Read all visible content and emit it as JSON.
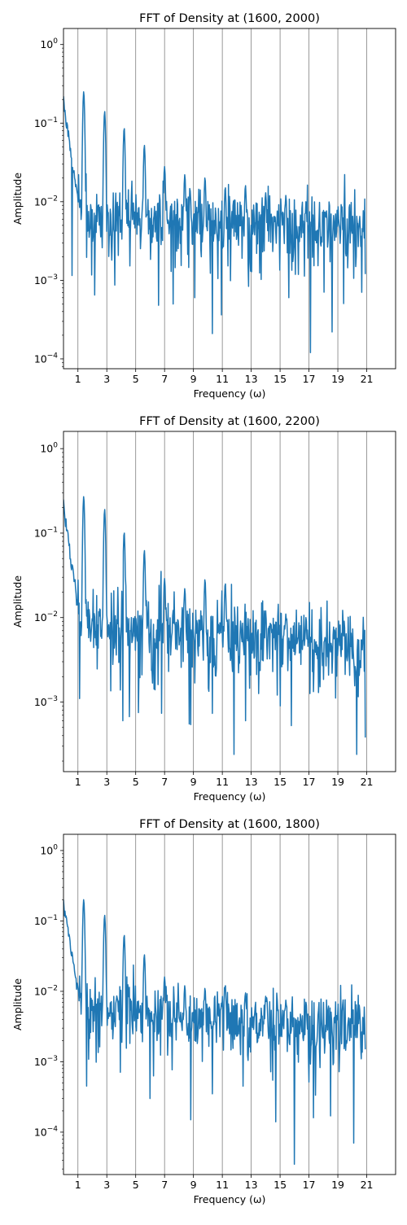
{
  "figure": {
    "x_ticks": [
      "1",
      "3",
      "5",
      "7",
      "9",
      "11",
      "13",
      "15",
      "17",
      "19",
      "21"
    ],
    "grid_color": "#808080",
    "line_color": "#1f77b4"
  },
  "chart_data": [
    {
      "type": "line",
      "title": "FFT of Density at (1600, 2000)",
      "xlabel": "Frequency (ω)",
      "ylabel": "Amplitude",
      "yscale": "log",
      "xlim": [
        0,
        23
      ],
      "ylim": [
        7.5e-05,
        1.6
      ],
      "y_tick_exponents": [
        -4,
        -3,
        -2,
        -1,
        0
      ],
      "grid": "vertical lines at odd frequencies",
      "seed": 11,
      "peaks": [
        {
          "x": 0.0,
          "y": 0.22
        },
        {
          "x": 1.4,
          "y": 0.25
        },
        {
          "x": 2.85,
          "y": 0.14
        },
        {
          "x": 4.2,
          "y": 0.085
        },
        {
          "x": 5.6,
          "y": 0.052
        },
        {
          "x": 7.0,
          "y": 0.028
        },
        {
          "x": 8.4,
          "y": 0.022
        },
        {
          "x": 9.8,
          "y": 0.02
        },
        {
          "x": 11.2,
          "y": 0.015
        },
        {
          "x": 12.6,
          "y": 0.016
        },
        {
          "x": 14.0,
          "y": 0.013
        },
        {
          "x": 15.4,
          "y": 0.012
        },
        {
          "x": 16.8,
          "y": 0.01
        }
      ],
      "dips": [
        {
          "x": 0.6,
          "y": 0.00115
        },
        {
          "x": 2.15,
          "y": 0.00065
        },
        {
          "x": 6.6,
          "y": 0.00048
        },
        {
          "x": 7.6,
          "y": 0.0005
        },
        {
          "x": 9.1,
          "y": 0.0006
        },
        {
          "x": 10.3,
          "y": 0.00021
        },
        {
          "x": 15.6,
          "y": 0.0006
        },
        {
          "x": 17.1,
          "y": 0.00012
        },
        {
          "x": 18.6,
          "y": 0.00022
        }
      ],
      "baseline_start": 0.007,
      "baseline_end": 0.0045,
      "x_end": 20.9,
      "end_value": 0.0012
    },
    {
      "type": "line",
      "title": "FFT of Density at (1600, 2200)",
      "xlabel": "Frequency (ω)",
      "ylabel": "Amplitude",
      "yscale": "log",
      "xlim": [
        0,
        23
      ],
      "ylim": [
        0.00015,
        1.6
      ],
      "y_tick_exponents": [
        -3,
        -2,
        -1,
        0
      ],
      "grid": "vertical lines at odd frequencies",
      "seed": 23,
      "peaks": [
        {
          "x": 0.0,
          "y": 0.25
        },
        {
          "x": 1.4,
          "y": 0.27
        },
        {
          "x": 2.85,
          "y": 0.19
        },
        {
          "x": 4.2,
          "y": 0.1
        },
        {
          "x": 5.6,
          "y": 0.062
        },
        {
          "x": 7.0,
          "y": 0.029
        },
        {
          "x": 8.4,
          "y": 0.022
        },
        {
          "x": 9.8,
          "y": 0.028
        },
        {
          "x": 11.2,
          "y": 0.025
        },
        {
          "x": 12.6,
          "y": 0.016
        },
        {
          "x": 14.0,
          "y": 0.012
        },
        {
          "x": 15.4,
          "y": 0.011
        },
        {
          "x": 16.8,
          "y": 0.01
        }
      ],
      "dips": [
        {
          "x": 1.1,
          "y": 0.0011
        },
        {
          "x": 4.1,
          "y": 0.0006
        },
        {
          "x": 5.2,
          "y": 0.00075
        },
        {
          "x": 8.7,
          "y": 0.00055
        },
        {
          "x": 11.8,
          "y": 0.00024
        },
        {
          "x": 12.6,
          "y": 0.0006
        },
        {
          "x": 15.0,
          "y": 0.0009
        },
        {
          "x": 20.3,
          "y": 0.00024
        }
      ],
      "baseline_start": 0.009,
      "baseline_end": 0.0045,
      "x_end": 20.9,
      "end_value": 0.00038
    },
    {
      "type": "line",
      "title": "FFT of Density at (1600, 1800)",
      "xlabel": "Frequency (ω)",
      "ylabel": "Amplitude",
      "yscale": "log",
      "xlim": [
        0,
        23
      ],
      "ylim": [
        2.5e-05,
        1.7
      ],
      "y_tick_exponents": [
        -4,
        -3,
        -2,
        -1,
        0
      ],
      "grid": "vertical lines at odd frequencies",
      "seed": 37,
      "peaks": [
        {
          "x": 0.0,
          "y": 0.2
        },
        {
          "x": 1.4,
          "y": 0.2
        },
        {
          "x": 2.85,
          "y": 0.12
        },
        {
          "x": 4.2,
          "y": 0.062
        },
        {
          "x": 5.6,
          "y": 0.033
        },
        {
          "x": 7.0,
          "y": 0.016
        },
        {
          "x": 8.4,
          "y": 0.012
        },
        {
          "x": 9.8,
          "y": 0.011
        },
        {
          "x": 11.2,
          "y": 0.012
        },
        {
          "x": 12.6,
          "y": 0.0095
        },
        {
          "x": 14.0,
          "y": 0.0085
        },
        {
          "x": 15.4,
          "y": 0.0075
        },
        {
          "x": 16.8,
          "y": 0.007
        }
      ],
      "dips": [
        {
          "x": 1.6,
          "y": 0.00045
        },
        {
          "x": 6.0,
          "y": 0.0003
        },
        {
          "x": 8.8,
          "y": 0.00015
        },
        {
          "x": 10.3,
          "y": 0.00035
        },
        {
          "x": 14.7,
          "y": 0.00014
        },
        {
          "x": 16.0,
          "y": 3.5e-05
        },
        {
          "x": 17.3,
          "y": 0.00016
        },
        {
          "x": 18.5,
          "y": 0.00017
        },
        {
          "x": 20.1,
          "y": 7e-05
        }
      ],
      "baseline_start": 0.006,
      "baseline_end": 0.003,
      "x_end": 20.9,
      "end_value": 0.0015
    }
  ]
}
